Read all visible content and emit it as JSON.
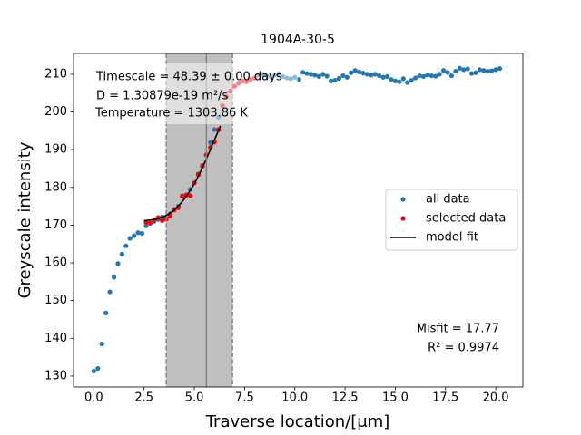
{
  "chart_data": {
    "type": "scatter",
    "title": "1904A-30-5",
    "x_label": "Traverse location/[μm]",
    "y_label": "Greyscale intensity",
    "xlim": [
      -1.01,
      21.35
    ],
    "ylim": [
      127.1,
      215.5
    ],
    "xticks": [
      {
        "value": 0,
        "label": "0.0"
      },
      {
        "value": 2.5,
        "label": "2.5"
      },
      {
        "value": 5,
        "label": "5.0"
      },
      {
        "value": 7.5,
        "label": "7.5"
      },
      {
        "value": 10,
        "label": "10.0"
      },
      {
        "value": 12.5,
        "label": "12.5"
      },
      {
        "value": 15,
        "label": "15.0"
      },
      {
        "value": 17.5,
        "label": "17.5"
      },
      {
        "value": 20,
        "label": "20.0"
      }
    ],
    "yticks": [
      130,
      140,
      150,
      160,
      170,
      180,
      190,
      200,
      210
    ],
    "window": [
      3.6,
      6.9
    ],
    "window_center": 5.6,
    "annotations": [
      "Timescale = 48.39 ± 0.00 days",
      "D = 1.30879e-19 m²/s",
      "Temperature = 1303.86 K"
    ],
    "fit_stats": [
      "Misfit = 17.77",
      "R² = 0.9974"
    ],
    "legend": "center right",
    "series": [
      {
        "name": "all data",
        "color": "#1f77b4",
        "kind": "points",
        "x": [
          0.0,
          0.2,
          0.4,
          0.6,
          0.8,
          1.0,
          1.2,
          1.4,
          1.6,
          1.8,
          2.0,
          2.2,
          2.4,
          2.6,
          2.8,
          3.0,
          3.2,
          3.4,
          3.6,
          3.8,
          4.0,
          4.2,
          4.4,
          4.6,
          4.8,
          5.0,
          5.2,
          5.4,
          5.6,
          5.8,
          6.0,
          6.2,
          6.4,
          6.6,
          6.8,
          7.0,
          7.2,
          7.4,
          7.6,
          7.8,
          8.0,
          8.2,
          8.4,
          8.6,
          8.8,
          9.0,
          9.2,
          9.4,
          9.6,
          9.8,
          10.0,
          10.2,
          10.4,
          10.6,
          10.8,
          11.0,
          11.2,
          11.4,
          11.6,
          11.8,
          12.0,
          12.2,
          12.4,
          12.6,
          12.8,
          13.0,
          13.2,
          13.4,
          13.6,
          13.8,
          14.0,
          14.2,
          14.4,
          14.6,
          14.8,
          15.0,
          15.2,
          15.4,
          15.6,
          15.8,
          16.0,
          16.2,
          16.4,
          16.6,
          16.8,
          17.0,
          17.2,
          17.4,
          17.6,
          17.8,
          18.0,
          18.2,
          18.4,
          18.6,
          18.8,
          19.0,
          19.2,
          19.4,
          19.6,
          19.8,
          20.0,
          20.2
        ],
        "values": [
          131.3,
          132.0,
          138.5,
          146.7,
          152.3,
          156.2,
          159.8,
          162.3,
          164.5,
          166.5,
          167.2,
          168.0,
          167.8,
          169.8,
          170.5,
          171.0,
          171.5,
          172.2,
          171.8,
          173.0,
          174.2,
          175.0,
          177.8,
          178.0,
          179.5,
          181.2,
          183.6,
          185.8,
          188.6,
          191.9,
          195.3,
          198.6,
          201.7,
          204.0,
          205.5,
          206.8,
          207.6,
          208.2,
          208.0,
          208.6,
          209.0,
          209.8,
          210.0,
          209.6,
          209.3,
          209.8,
          210.1,
          209.4,
          209.0,
          208.8,
          209.2,
          208.6,
          210.5,
          210.2,
          210.0,
          209.8,
          209.4,
          210.0,
          209.5,
          208.2,
          208.4,
          208.9,
          209.6,
          209.2,
          210.4,
          211.0,
          210.6,
          210.3,
          210.0,
          209.8,
          210.0,
          209.6,
          209.2,
          209.4,
          208.6,
          208.2,
          208.0,
          208.8,
          207.8,
          208.4,
          209.0,
          209.6,
          209.4,
          209.8,
          209.6,
          209.5,
          210.0,
          211.0,
          210.5,
          209.6,
          210.8,
          211.6,
          211.2,
          211.4,
          210.2,
          210.4,
          211.2,
          211.0,
          210.8,
          210.9,
          211.2,
          211.5
        ]
      },
      {
        "name": "selected data",
        "color": "#ff0000",
        "kind": "points",
        "x": [
          2.6,
          2.8,
          3.0,
          3.2,
          3.4,
          3.6,
          3.8,
          4.0,
          4.2,
          4.4,
          4.6,
          4.8,
          5.0,
          5.2,
          5.4,
          5.6,
          5.8,
          6.0,
          6.2,
          6.4,
          6.6,
          6.8,
          7.0,
          7.2,
          7.4,
          7.6,
          7.8,
          8.0
        ],
        "values": [
          170.8,
          170.5,
          171.4,
          172.0,
          171.2,
          171.6,
          172.4,
          174.0,
          174.6,
          177.6,
          178.0,
          177.8,
          181.2,
          183.4,
          185.6,
          188.6,
          190.6,
          192.0,
          195.3,
          201.7,
          204.0,
          205.5,
          206.8,
          207.6,
          208.2,
          208.0,
          208.6,
          209.0
        ]
      },
      {
        "name": "model fit",
        "color": "#000000",
        "kind": "line",
        "x": [
          2.5,
          2.7,
          2.9,
          3.1,
          3.3,
          3.5,
          3.7,
          3.9,
          4.1,
          4.3,
          4.5,
          4.7,
          4.9,
          5.1,
          5.3,
          5.5,
          5.7,
          5.9,
          6.1,
          6.3
        ],
        "values": [
          171.2,
          171.3,
          171.4,
          171.6,
          171.9,
          172.3,
          172.9,
          173.6,
          174.5,
          175.6,
          176.9,
          178.4,
          180.1,
          182.0,
          184.1,
          186.4,
          188.8,
          191.3,
          193.8,
          196.3
        ]
      }
    ]
  }
}
